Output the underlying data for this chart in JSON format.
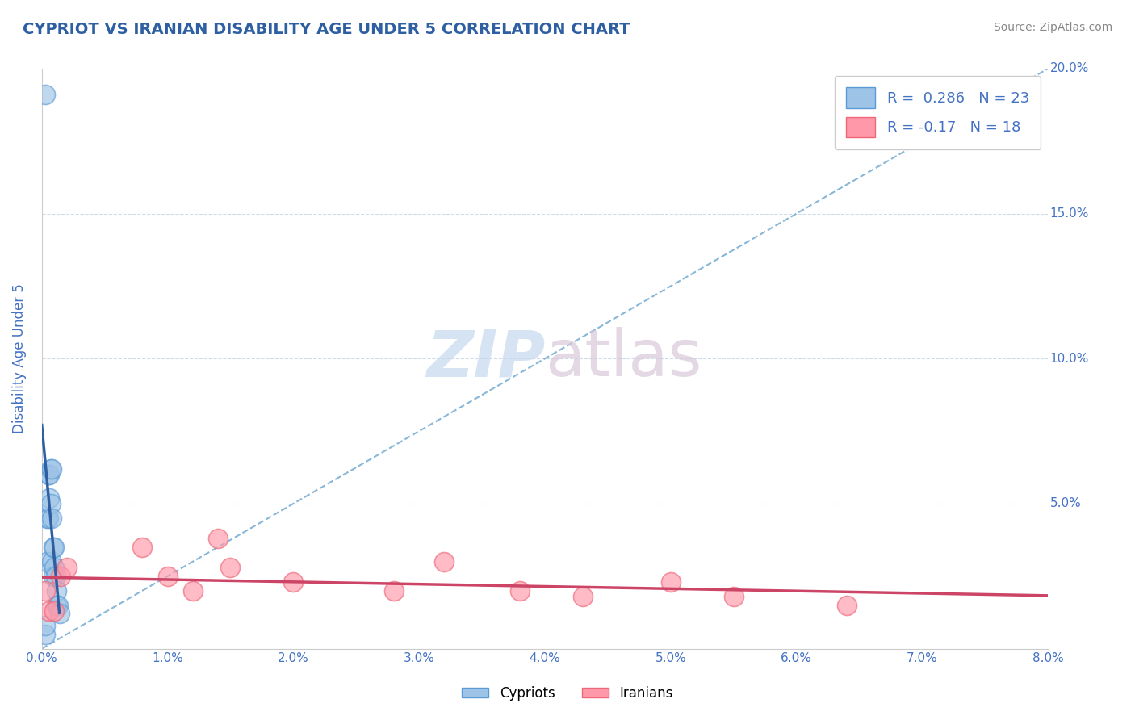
{
  "title": "CYPRIOT VS IRANIAN DISABILITY AGE UNDER 5 CORRELATION CHART",
  "source_text": "Source: ZipAtlas.com",
  "ylabel": "Disability Age Under 5",
  "xlim": [
    0.0,
    0.08
  ],
  "ylim": [
    0.0,
    0.2
  ],
  "xticks": [
    0.0,
    0.01,
    0.02,
    0.03,
    0.04,
    0.05,
    0.06,
    0.07,
    0.08
  ],
  "xticklabels": [
    "0.0%",
    "1.0%",
    "2.0%",
    "3.0%",
    "4.0%",
    "5.0%",
    "6.0%",
    "7.0%",
    "8.0%"
  ],
  "yticks": [
    0.0,
    0.05,
    0.1,
    0.15,
    0.2
  ],
  "yticklabels": [
    "0.0%",
    "5.0%",
    "10.0%",
    "15.0%",
    "20.0%"
  ],
  "cypriot_color": "#9DC3E6",
  "cypriot_edge_color": "#5B9BD5",
  "iranian_color": "#FF99AA",
  "iranian_edge_color": "#EE6677",
  "cypriot_R": 0.286,
  "cypriot_N": 23,
  "iranian_R": -0.17,
  "iranian_N": 18,
  "cypriot_scatter_x": [
    0.0003,
    0.0003,
    0.0004,
    0.0004,
    0.0005,
    0.0005,
    0.0006,
    0.0006,
    0.0007,
    0.0007,
    0.0008,
    0.0008,
    0.0008,
    0.0009,
    0.0009,
    0.001,
    0.001,
    0.0011,
    0.0012,
    0.0012,
    0.0013,
    0.0014,
    0.0003
  ],
  "cypriot_scatter_y": [
    0.191,
    0.005,
    0.045,
    0.03,
    0.06,
    0.045,
    0.06,
    0.052,
    0.062,
    0.05,
    0.062,
    0.045,
    0.03,
    0.035,
    0.025,
    0.035,
    0.028,
    0.025,
    0.02,
    0.015,
    0.015,
    0.012,
    0.008
  ],
  "iranian_scatter_x": [
    0.0003,
    0.0005,
    0.001,
    0.0015,
    0.002,
    0.008,
    0.01,
    0.012,
    0.014,
    0.015,
    0.02,
    0.028,
    0.032,
    0.038,
    0.043,
    0.05,
    0.055,
    0.064
  ],
  "iranian_scatter_y": [
    0.02,
    0.013,
    0.013,
    0.025,
    0.028,
    0.035,
    0.025,
    0.02,
    0.038,
    0.028,
    0.023,
    0.02,
    0.03,
    0.02,
    0.018,
    0.023,
    0.018,
    0.015
  ],
  "watermark_text": "ZIPatlas",
  "title_color": "#2E5FA3",
  "axis_tick_color": "#4472C4",
  "legend_R_color": "#4472C4",
  "trend_line_cypriot_color": "#2E5FA3",
  "trend_line_iranian_color": "#CC4466",
  "diag_line_color": "#7BAFD4",
  "background_color": "#FFFFFF",
  "plot_bg_color": "#FFFFFF"
}
